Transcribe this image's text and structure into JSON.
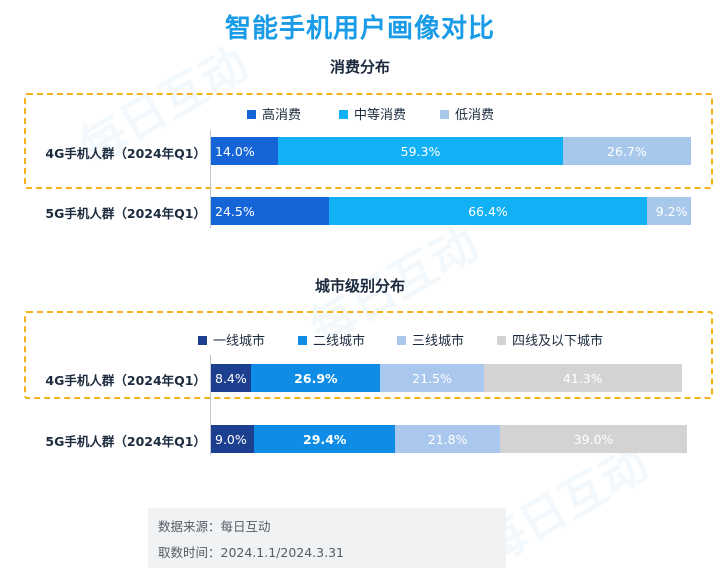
{
  "title": "智能手机用户画像对比",
  "watermark": "每日互动",
  "colors": {
    "title": "#1a9be8",
    "highlight_border": "#f3b21a",
    "axis": "#bfc5cc"
  },
  "chart_data": [
    {
      "type": "bar",
      "orientation": "horizontal",
      "stacked": true,
      "percent": true,
      "title": "消费分布",
      "legend_position": "top",
      "categories": [
        "4G手机人群（2024年Q1）",
        "5G手机人群（2024年Q1）"
      ],
      "highlighted_category": "4G手机人群（2024年Q1）",
      "series": [
        {
          "name": "高消费",
          "color": "#1565d8",
          "label_color": "#ffffff",
          "bold": false,
          "values": [
            14.0,
            24.5
          ],
          "labels": [
            "14.0%",
            "24.5%"
          ]
        },
        {
          "name": "中等消费",
          "color": "#12b0f5",
          "label_color": "#ffffff",
          "bold": false,
          "values": [
            59.3,
            66.4
          ],
          "labels": [
            "59.3%",
            "66.4%"
          ]
        },
        {
          "name": "低消费",
          "color": "#a8c8eb",
          "label_color": "#ffffff",
          "bold": false,
          "values": [
            26.7,
            9.2
          ],
          "labels": [
            "26.7%",
            "9.2%"
          ]
        }
      ]
    },
    {
      "type": "bar",
      "orientation": "horizontal",
      "stacked": true,
      "percent": true,
      "title": "城市级别分布",
      "legend_position": "top",
      "categories": [
        "4G手机人群（2024年Q1）",
        "5G手机人群（2024年Q1）"
      ],
      "highlighted_category": "4G手机人群（2024年Q1）",
      "series": [
        {
          "name": "一线城市",
          "color": "#1d3f8f",
          "label_color": "#ffffff",
          "bold": false,
          "values": [
            8.4,
            9.0
          ],
          "labels": [
            "8.4%",
            "9.0%"
          ]
        },
        {
          "name": "二线城市",
          "color": "#0f8de6",
          "label_color": "#ffffff",
          "bold": true,
          "values": [
            26.9,
            29.4
          ],
          "labels": [
            "26.9%",
            "29.4%"
          ]
        },
        {
          "name": "三线城市",
          "color": "#aac7ee",
          "label_color": "#ffffff",
          "bold": false,
          "values": [
            21.5,
            21.8
          ],
          "labels": [
            "21.5%",
            "21.8%"
          ]
        },
        {
          "name": "四线及以下城市",
          "color": "#d3d3d3",
          "label_color": "#ffffff",
          "bold": false,
          "values": [
            41.3,
            39.0
          ],
          "labels": [
            "41.3%",
            "39.0%"
          ]
        }
      ]
    }
  ],
  "footer": {
    "source": "数据来源：每日互动",
    "period": "取数时间：2024.1.1/2024.3.31"
  }
}
